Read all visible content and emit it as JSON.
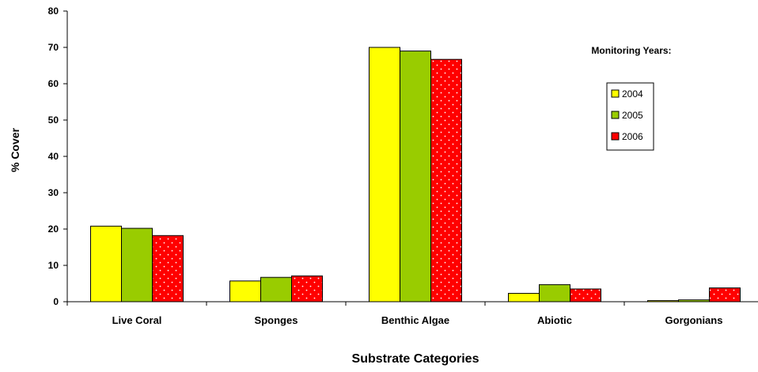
{
  "chart_data": {
    "type": "bar",
    "title": "",
    "xlabel": "Substrate Categories",
    "ylabel": "% Cover",
    "ylim": [
      0,
      80
    ],
    "yticks": [
      0,
      10,
      20,
      30,
      40,
      50,
      60,
      70,
      80
    ],
    "categories": [
      "Live Coral",
      "Sponges",
      "Benthic Algae",
      "Abiotic",
      "Gorgonians"
    ],
    "legend_title": "Monitoring Years:",
    "legend_position": "right",
    "grid": false,
    "series": [
      {
        "name": "2004",
        "color": "#ffff00",
        "pattern": "solid",
        "values": [
          20.8,
          5.7,
          70.0,
          2.3,
          0.3
        ]
      },
      {
        "name": "2005",
        "color": "#99cc00",
        "pattern": "solid",
        "values": [
          20.2,
          6.7,
          69.0,
          4.7,
          0.5
        ]
      },
      {
        "name": "2006",
        "color": "#ff0000",
        "pattern": "dotted",
        "values": [
          18.2,
          7.1,
          66.7,
          3.5,
          3.8
        ]
      }
    ]
  }
}
